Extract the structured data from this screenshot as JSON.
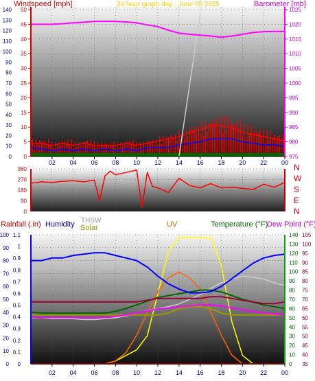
{
  "header": {
    "windspeed_label": "Windspeed [mph]",
    "title": "24 hour graph day : June 05 2025",
    "barometer_label": "Barometer [mb]"
  },
  "bottom_header": {
    "rainfall_label": "Rainfall (.in)",
    "humidity_label": "Humidity",
    "thsw_label": "THSW",
    "solar_label": "Solar",
    "uv_label": "UV",
    "temperature_label": "Temperature (°F)",
    "dewpoint_label": "Dew Point (°F)"
  },
  "compass_letters": [
    "N",
    "W",
    "S",
    "E",
    "N"
  ],
  "colors": {
    "windspeed": "#ff0000",
    "gust": "#ff0000",
    "barometer": "#ff00ff",
    "title": "#ffcc00",
    "humidity": "#0000cc",
    "rainfall": "#ff0000",
    "solar": "#999900",
    "uv": "#cc6600",
    "temperature": "#006600",
    "dewpoint": "#cc00cc",
    "thsw": "#999999",
    "wind_dir": "#ff0000",
    "axis_blue": "#0000ff",
    "axis_green": "#00aa00"
  },
  "chart_data": [
    {
      "type": "line",
      "name": "wind",
      "x_tick_labels": [
        "02",
        "04",
        "06",
        "08",
        "10",
        "12",
        "14",
        "16",
        "18",
        "20",
        "22",
        "00"
      ],
      "left_axis": {
        "label": "Windspeed [mph]",
        "ticks_mph": [
          0,
          5,
          10,
          15,
          20,
          25,
          30,
          35,
          40,
          45,
          50
        ],
        "ticks_secondary": [
          0,
          10,
          20,
          30,
          40,
          50,
          60,
          70,
          80,
          90,
          100,
          110,
          120,
          130,
          140
        ]
      },
      "right_axis": {
        "label": "Barometer [mb]",
        "ticks": [
          975,
          980,
          985,
          990,
          995,
          1000,
          1005,
          1010,
          1015,
          1020,
          1025
        ],
        "ylim": [
          975,
          1025
        ]
      },
      "hours": [
        0,
        1,
        2,
        3,
        4,
        5,
        6,
        7,
        8,
        9,
        10,
        11,
        12,
        13,
        14,
        15,
        16,
        17,
        18,
        19,
        20,
        21,
        22,
        23,
        24
      ],
      "barometer_mb": [
        1020,
        1020,
        1020,
        1020.2,
        1020.5,
        1020.7,
        1021,
        1021,
        1021,
        1020.8,
        1020.5,
        1019.8,
        1019.2,
        1018,
        1017,
        1016.6,
        1016.3,
        1016,
        1015.6,
        1016,
        1016.6,
        1017.2,
        1017.5,
        1017.6,
        1017.6
      ],
      "windspeed_mph": [
        3,
        2.5,
        2,
        2.5,
        2,
        2.5,
        2,
        2.5,
        2,
        2.5,
        2,
        3,
        3,
        3,
        4,
        4.5,
        5,
        6,
        6,
        6,
        5,
        4.5,
        4,
        4,
        3.5
      ],
      "gust_mph": [
        6,
        6,
        5,
        6,
        5,
        6,
        5,
        5,
        5,
        6,
        5,
        6,
        7,
        8,
        9,
        11,
        12,
        14,
        14,
        13,
        11,
        10,
        9,
        8,
        7
      ],
      "thsw_trace": [
        {
          "hour": 14,
          "value": 0
        },
        {
          "hour": 16,
          "value": 140
        }
      ]
    },
    {
      "type": "line",
      "name": "wind_direction",
      "left_axis_ticks": [
        0,
        90,
        180,
        270,
        360
      ],
      "ylim": [
        0,
        360
      ],
      "hours": [
        0,
        1,
        2,
        3,
        4,
        5,
        6,
        6.5,
        7,
        7.5,
        8,
        9,
        10,
        10.5,
        11,
        11.5,
        12,
        13,
        14,
        15,
        16,
        17,
        18,
        19,
        20,
        21,
        22,
        23,
        24
      ],
      "degrees": [
        240,
        250,
        245,
        255,
        260,
        250,
        265,
        90,
        300,
        340,
        310,
        330,
        350,
        30,
        330,
        210,
        200,
        160,
        280,
        220,
        200,
        235,
        200,
        205,
        195,
        185,
        230,
        205,
        245
      ]
    },
    {
      "type": "line",
      "name": "weather",
      "rain_axis_ticks": [
        0,
        0.1,
        0.2,
        0.3,
        0.4,
        0.5,
        0.6,
        0.7,
        0.8,
        0.9,
        1,
        1.1
      ],
      "humidity_axis_ticks": [
        0,
        10,
        20,
        30,
        40,
        50,
        60,
        70,
        80,
        90,
        100
      ],
      "temp_axis_ticks": [
        0,
        10,
        20,
        30,
        40,
        50,
        60,
        70,
        80,
        90,
        100,
        110,
        120,
        130,
        140
      ],
      "dewpoint_axis_ticks": [
        35,
        40,
        45,
        50,
        55,
        60,
        65,
        70,
        75,
        80,
        85,
        90,
        95,
        100,
        105
      ],
      "hours": [
        0,
        1,
        2,
        3,
        4,
        5,
        6,
        7,
        8,
        9,
        10,
        11,
        12,
        13,
        14,
        15,
        16,
        17,
        18,
        19,
        20,
        21,
        22,
        23,
        24
      ],
      "humidity_pct": [
        80,
        80,
        82,
        82,
        84,
        85,
        86,
        86,
        84,
        82,
        80,
        75,
        68,
        62,
        58,
        55,
        55,
        56,
        60,
        66,
        72,
        78,
        82,
        84,
        85
      ],
      "dewpoint_f": [
        66,
        66,
        66,
        66,
        66,
        66,
        66,
        66,
        66,
        66,
        66,
        67,
        68,
        68,
        68,
        68,
        68,
        69,
        69,
        68,
        67,
        66,
        65,
        65,
        66
      ],
      "temperature_f": [
        56,
        55,
        55,
        55,
        55,
        55,
        55,
        55,
        57,
        60,
        64,
        68,
        72,
        74,
        76,
        78,
        80,
        80,
        78,
        74,
        70,
        67,
        64,
        62,
        60
      ],
      "thsw_f": [
        50,
        50,
        49,
        49,
        49,
        48,
        48,
        49,
        50,
        52,
        55,
        58,
        60,
        62,
        65,
        70,
        75,
        82,
        88,
        92,
        95,
        94,
        92,
        88,
        85
      ],
      "solar_f": [
        53,
        53,
        53,
        53,
        53,
        53,
        53,
        53,
        53,
        53,
        53,
        53,
        53,
        55,
        60,
        62,
        62,
        60,
        55,
        53,
        53,
        53,
        53,
        53,
        53
      ],
      "uv_index": [
        0,
        0,
        0,
        0,
        0,
        0,
        0,
        0,
        0.1,
        0.3,
        0.5,
        1.0,
        2.5,
        4.0,
        4.5,
        4.5,
        4.5,
        4.5,
        3.5,
        1.5,
        0.3,
        0,
        0,
        0,
        0
      ],
      "solar_radiation_scaled": [
        0,
        0,
        0,
        0,
        0,
        0,
        0,
        0,
        1,
        4,
        10,
        18,
        25,
        30,
        32,
        30,
        26,
        18,
        10,
        3,
        0,
        0,
        0,
        0,
        0
      ],
      "rainfall_in": [
        0,
        0,
        0,
        0,
        0,
        0,
        0,
        0,
        0,
        0,
        0,
        0,
        0,
        0,
        0,
        0,
        0,
        0,
        0,
        0,
        0,
        0,
        0,
        0,
        0
      ]
    }
  ]
}
